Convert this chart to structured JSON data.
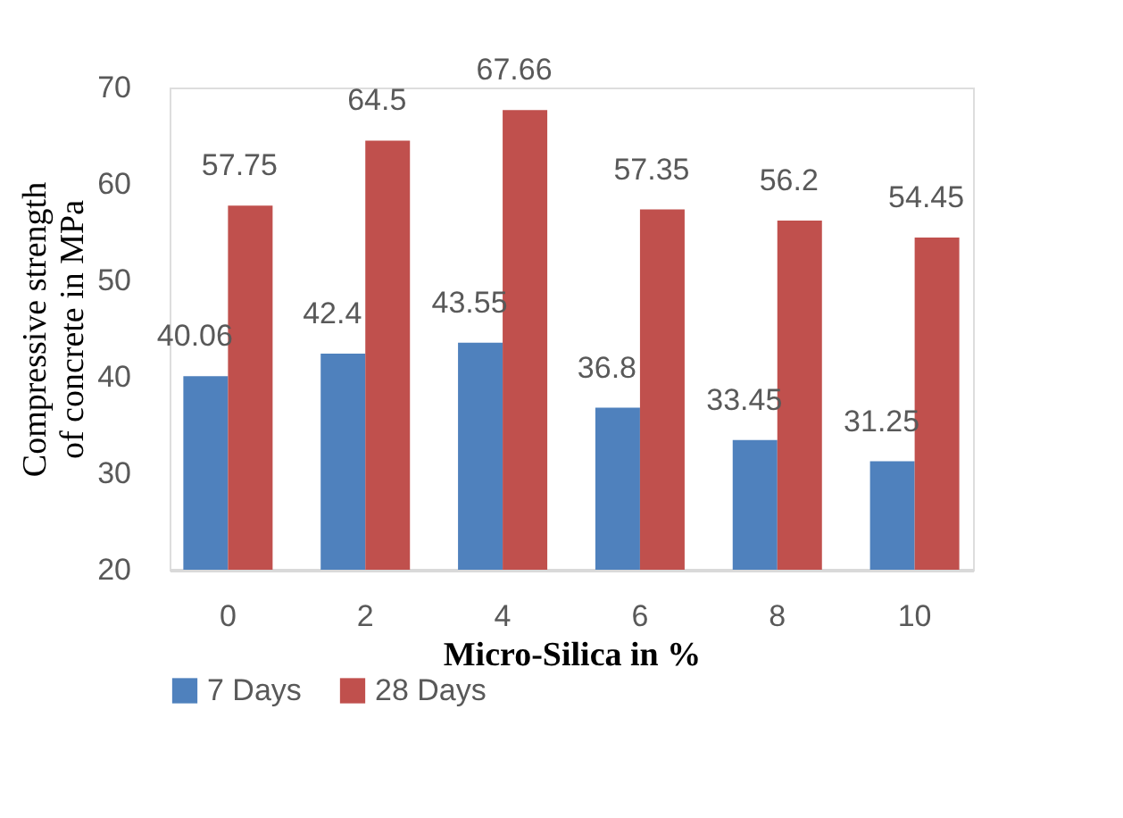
{
  "chart_data": {
    "type": "bar",
    "xlabel": "Micro-Silica in %",
    "ylabel": "Compressive  strength\nof concrete in MPa",
    "categories": [
      "0",
      "2",
      "4",
      "6",
      "8",
      "10"
    ],
    "series": [
      {
        "name": "7 Days",
        "color": "#4f81bd",
        "values": [
          40.06,
          42.4,
          43.55,
          36.8,
          33.45,
          31.25
        ]
      },
      {
        "name": "28 Days",
        "color": "#c0504d",
        "values": [
          57.75,
          64.5,
          67.66,
          57.35,
          56.2,
          54.45
        ]
      }
    ],
    "ylim": [
      20,
      70
    ],
    "yticks": [
      20,
      30,
      40,
      50,
      60,
      70
    ],
    "data_labels": true,
    "grid": false,
    "legend": "bottom"
  }
}
